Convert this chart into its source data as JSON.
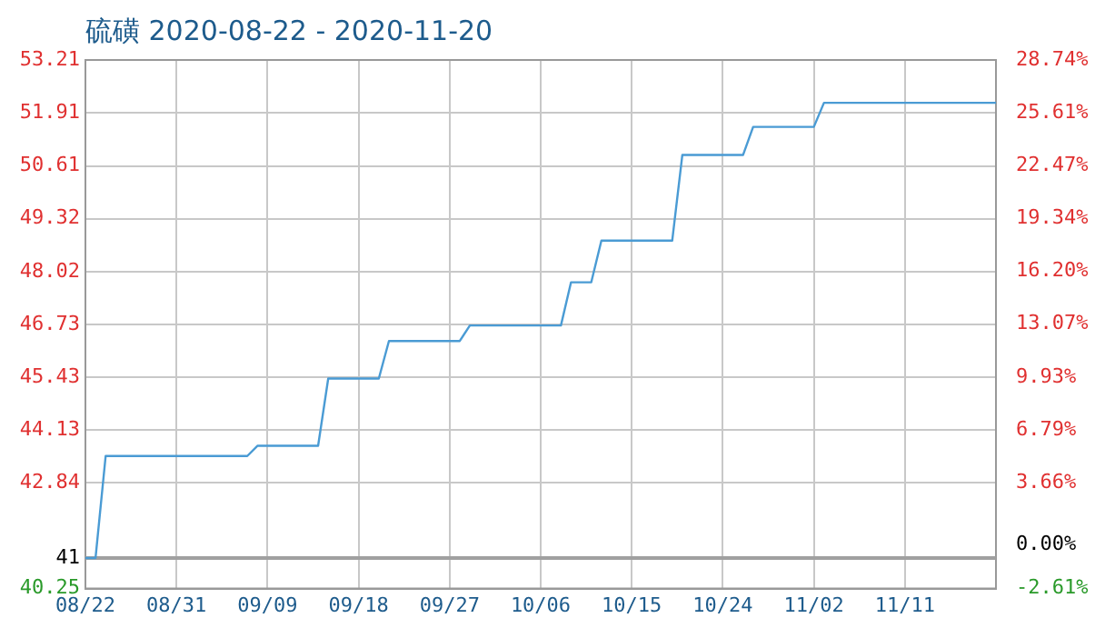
{
  "chart_data": {
    "type": "line",
    "title": "硫磺 2020-08-22 - 2020-11-20",
    "x": [
      "2020-08-22",
      "2020-08-23",
      "2020-08-24",
      "2020-09-07",
      "2020-09-08",
      "2020-09-14",
      "2020-09-15",
      "2020-09-20",
      "2020-09-21",
      "2020-09-28",
      "2020-09-29",
      "2020-10-08",
      "2020-10-09",
      "2020-10-11",
      "2020-10-12",
      "2020-10-19",
      "2020-10-20",
      "2020-10-26",
      "2020-10-27",
      "2020-11-02",
      "2020-11-03",
      "2020-11-20"
    ],
    "series": [
      {
        "color": "#4a9bd4",
        "values": [
          41,
          41,
          43.5,
          43.5,
          43.75,
          43.75,
          45.4,
          45.4,
          46.32,
          46.32,
          46.7,
          46.7,
          47.76,
          47.76,
          48.78,
          48.78,
          50.88,
          50.88,
          51.57,
          51.57,
          52.16,
          52.16
        ]
      }
    ],
    "xlim": [
      "2020-08-22",
      "2020-11-20"
    ],
    "xticks": [
      {
        "value": "2020-08-22",
        "label": "08/22"
      },
      {
        "value": "2020-08-31",
        "label": "08/31"
      },
      {
        "value": "2020-09-09",
        "label": "09/09"
      },
      {
        "value": "2020-09-18",
        "label": "09/18"
      },
      {
        "value": "2020-09-27",
        "label": "09/27"
      },
      {
        "value": "2020-10-06",
        "label": "10/06"
      },
      {
        "value": "2020-10-15",
        "label": "10/15"
      },
      {
        "value": "2020-10-24",
        "label": "10/24"
      },
      {
        "value": "2020-11-02",
        "label": "11/02"
      },
      {
        "value": "2020-11-11",
        "label": "11/11"
      }
    ],
    "ylim": [
      40.25,
      53.21
    ],
    "yticks": [
      40.25,
      41,
      42.84,
      44.13,
      45.43,
      46.73,
      48.02,
      49.32,
      50.61,
      51.91,
      53.21
    ],
    "y2lim": [
      -2.61,
      28.74
    ],
    "y2ticks": [
      {
        "value": -2.61,
        "label": "-2.61%"
      },
      {
        "value": 0,
        "label": "0.00%"
      },
      {
        "value": 3.66,
        "label": "3.66%"
      },
      {
        "value": 6.79,
        "label": "6.79%"
      },
      {
        "value": 9.93,
        "label": "9.93%"
      },
      {
        "value": 13.07,
        "label": "13.07%"
      },
      {
        "value": 16.2,
        "label": "16.20%"
      },
      {
        "value": 19.34,
        "label": "19.34%"
      },
      {
        "value": 22.47,
        "label": "22.47%"
      },
      {
        "value": 25.61,
        "label": "25.61%"
      },
      {
        "value": 28.74,
        "label": "28.74%"
      }
    ],
    "ref_lines": [
      {
        "axis": "y",
        "value": 41,
        "color": "#a0a0a0"
      }
    ],
    "grid": true,
    "legend": false,
    "marker": "none",
    "line_style": "solid"
  }
}
